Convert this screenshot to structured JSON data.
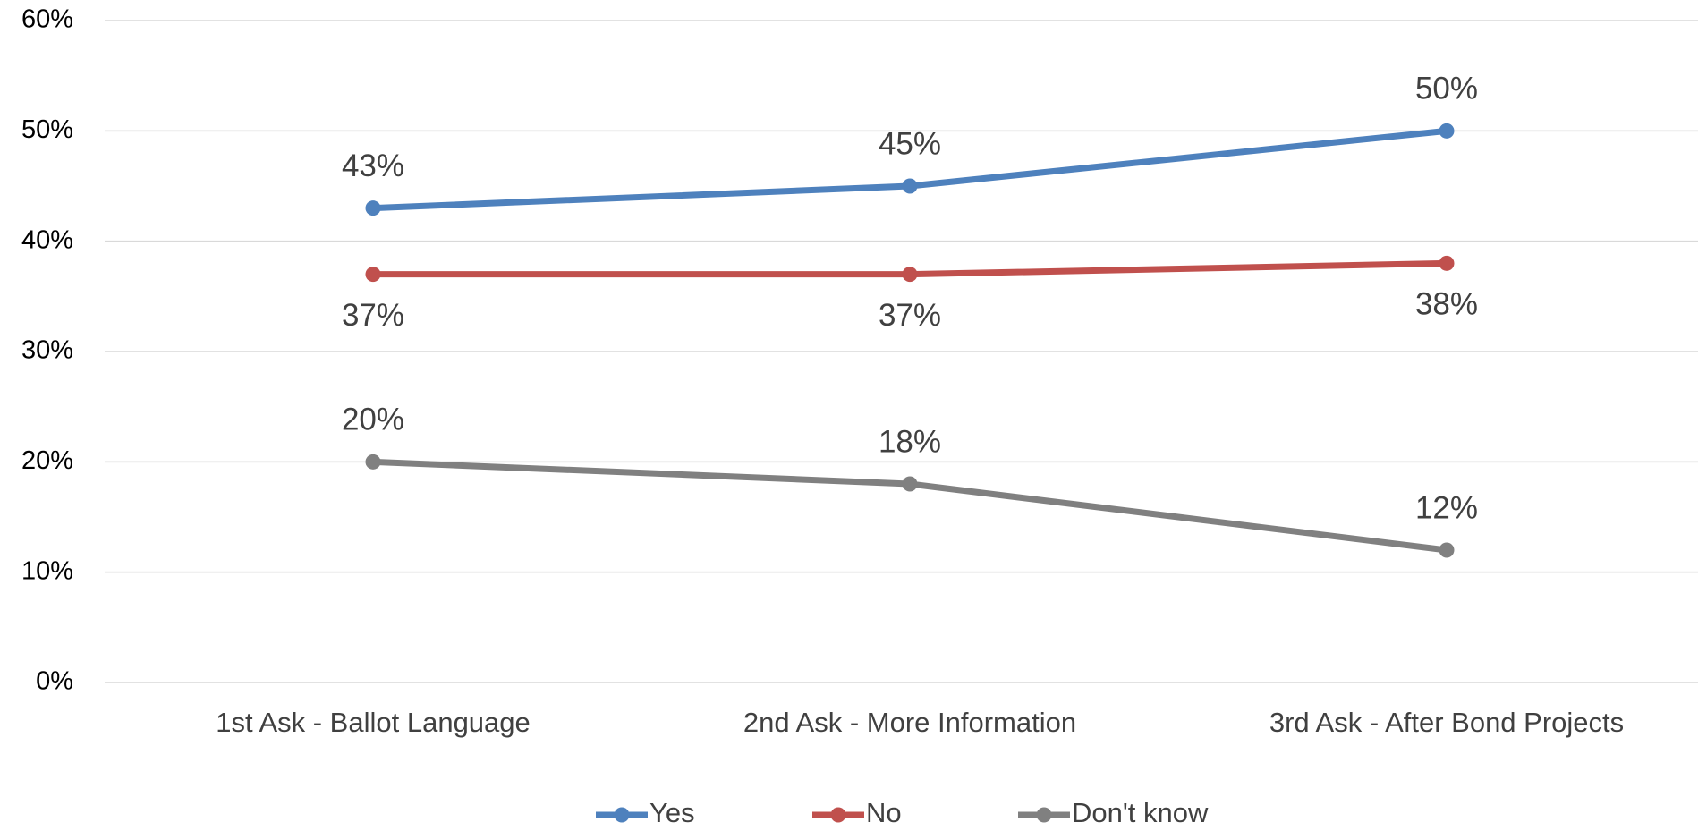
{
  "chart_data": {
    "type": "line",
    "categories": [
      "1st Ask - Ballot Language",
      "2nd Ask - More Information",
      "3rd Ask - After Bond Projects"
    ],
    "series": [
      {
        "name": "Yes",
        "color": "#4e81bd",
        "values": [
          43,
          45,
          50
        ],
        "value_labels": [
          "43%",
          "45%",
          "50%"
        ]
      },
      {
        "name": "No",
        "color": "#c0504d",
        "values": [
          37,
          37,
          38
        ],
        "value_labels": [
          "37%",
          "37%",
          "38%"
        ]
      },
      {
        "name": "Don't know",
        "color": "#808080",
        "values": [
          20,
          18,
          12
        ],
        "value_labels": [
          "20%",
          "18%",
          "12%"
        ]
      }
    ],
    "ylim": [
      0,
      60
    ],
    "yticks": [
      {
        "value": 0,
        "label": "0%"
      },
      {
        "value": 10,
        "label": "10%"
      },
      {
        "value": 20,
        "label": "20%"
      },
      {
        "value": 30,
        "label": "30%"
      },
      {
        "value": 40,
        "label": "40%"
      },
      {
        "value": 50,
        "label": "50%"
      },
      {
        "value": 60,
        "label": "60%"
      }
    ],
    "grid": true,
    "legend": "bottom"
  }
}
